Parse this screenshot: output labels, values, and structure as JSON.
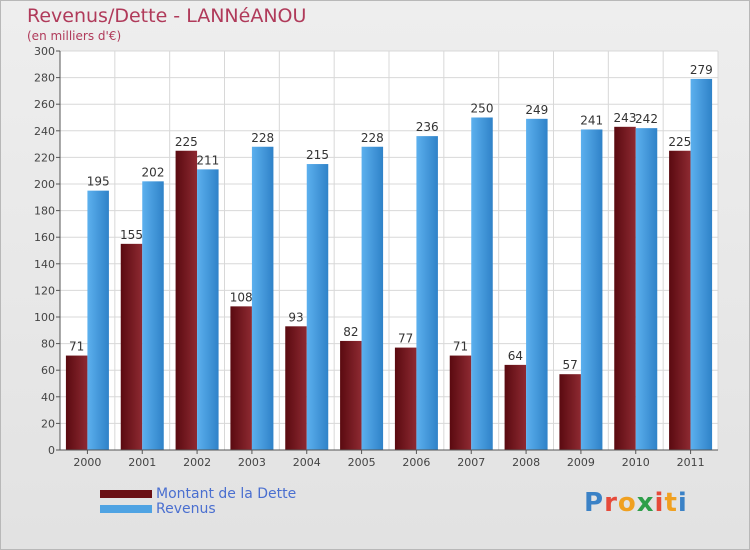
{
  "header": {
    "title": "Revenus/Dette - LANNéANOU",
    "subtitle": "(en milliers d'€)"
  },
  "legend": {
    "debt_label": "Montant de la Dette",
    "revenue_label": "Revenus"
  },
  "logo": {
    "text": "Proxiti",
    "colors": [
      "#3b82c6",
      "#e64a3a",
      "#f0a020",
      "#2e9f4a",
      "#e64a3a",
      "#f0a020",
      "#3b82c6"
    ]
  },
  "colors": {
    "debt": "#7a1a1f",
    "revenue": "#4fa3e3"
  },
  "chart_data": {
    "type": "bar",
    "title": "Revenus/Dette - LANNéANOU",
    "subtitle": "(en milliers d'€)",
    "categories": [
      "2000",
      "2001",
      "2002",
      "2003",
      "2004",
      "2005",
      "2006",
      "2007",
      "2008",
      "2009",
      "2010",
      "2011"
    ],
    "series": [
      {
        "name": "Montant de la Dette",
        "values": [
          71,
          155,
          225,
          108,
          93,
          82,
          77,
          71,
          64,
          57,
          243,
          225
        ]
      },
      {
        "name": "Revenus",
        "values": [
          195,
          202,
          211,
          228,
          215,
          228,
          236,
          250,
          249,
          241,
          242,
          279
        ]
      }
    ],
    "ylim": [
      0,
      300
    ],
    "yticks": [
      0,
      20,
      40,
      60,
      80,
      100,
      120,
      140,
      160,
      180,
      200,
      220,
      240,
      260,
      280,
      300
    ],
    "grid": true,
    "legend_position": "bottom-left"
  }
}
